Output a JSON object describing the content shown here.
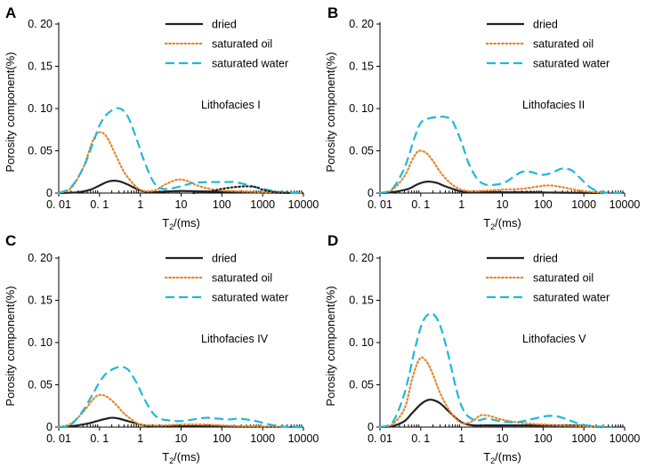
{
  "colors": {
    "dried": "#222222",
    "oil": "#E8852B",
    "water": "#1FB8D8",
    "dotted_dark": "#222222"
  },
  "shared": {
    "xlabel_main": "T",
    "xlabel_sub": "2",
    "xlabel_tail": "/(ms)",
    "ylabel": "Porosity component(%)",
    "legend": [
      "dried",
      "saturated oil",
      "saturated water"
    ],
    "xticks": [
      "0. 01",
      "0. 1",
      "1",
      "10",
      "100",
      "1000",
      "10000"
    ],
    "xtick_values": [
      0.01,
      0.1,
      1,
      10,
      100,
      1000,
      10000
    ]
  },
  "chart_data": [
    {
      "type": "line",
      "panel": "A",
      "label": "Lithofacies I",
      "xscale": "log",
      "xlim": [
        0.01,
        10000
      ],
      "ylim": [
        0,
        0.2
      ],
      "yticks": [
        "0",
        "0. 05",
        "0. 10",
        "0. 15",
        "0. 20"
      ],
      "ytick_values": [
        0,
        0.05,
        0.1,
        0.15,
        0.2
      ],
      "series": [
        {
          "name": "dried",
          "style": "solid",
          "color": "#222222",
          "x": [
            0.01,
            0.03,
            0.06,
            0.1,
            0.15,
            0.2,
            0.3,
            0.5,
            0.8,
            1.2,
            2,
            5,
            10,
            30,
            100,
            300,
            1000,
            3000,
            10000
          ],
          "values": [
            0,
            0.001,
            0.004,
            0.009,
            0.013,
            0.0145,
            0.014,
            0.01,
            0.005,
            0.002,
            0.001,
            0.002,
            0.0025,
            0.002,
            0.0015,
            0.001,
            0.0005,
            0.0002,
            0
          ]
        },
        {
          "name": "saturated oil",
          "style": "dotted",
          "color": "#E8852B",
          "x": [
            0.01,
            0.02,
            0.04,
            0.06,
            0.08,
            0.1,
            0.13,
            0.17,
            0.25,
            0.4,
            0.7,
            1,
            1.5,
            2.5,
            4,
            7,
            10,
            15,
            25,
            50,
            100,
            300,
            1000,
            3000,
            10000
          ],
          "values": [
            0,
            0.006,
            0.03,
            0.055,
            0.068,
            0.072,
            0.07,
            0.062,
            0.045,
            0.025,
            0.01,
            0.004,
            0.002,
            0.004,
            0.01,
            0.015,
            0.016,
            0.014,
            0.009,
            0.005,
            0.003,
            0.002,
            0.001,
            0.0003,
            0
          ]
        },
        {
          "name": "saturated water",
          "style": "dashed",
          "color": "#1FB8D8",
          "x": [
            0.01,
            0.02,
            0.04,
            0.07,
            0.1,
            0.15,
            0.25,
            0.35,
            0.5,
            0.8,
            1.2,
            2,
            3,
            5,
            10,
            20,
            50,
            100,
            200,
            400,
            1000,
            3000,
            10000
          ],
          "values": [
            0,
            0.007,
            0.03,
            0.06,
            0.08,
            0.093,
            0.1,
            0.099,
            0.09,
            0.065,
            0.04,
            0.015,
            0.006,
            0.005,
            0.008,
            0.012,
            0.013,
            0.013,
            0.013,
            0.01,
            0.005,
            0.001,
            0
          ]
        },
        {
          "name": "additional",
          "style": "dotted",
          "color": "#222222",
          "x": [
            20,
            50,
            100,
            200,
            400,
            700,
            1000,
            2000,
            5000
          ],
          "values": [
            0,
            0.002,
            0.005,
            0.007,
            0.008,
            0.007,
            0.004,
            0.001,
            0
          ]
        }
      ]
    },
    {
      "type": "line",
      "panel": "B",
      "label": "Lithofacies II",
      "xscale": "log",
      "xlim": [
        0.01,
        10000
      ],
      "ylim": [
        0,
        0.2
      ],
      "yticks": [
        "0",
        "0. 05",
        "0. 10",
        "0. 15",
        "0. 20"
      ],
      "ytick_values": [
        0,
        0.05,
        0.1,
        0.15,
        0.2
      ],
      "series": [
        {
          "name": "dried",
          "style": "solid",
          "color": "#222222",
          "x": [
            0.01,
            0.02,
            0.05,
            0.08,
            0.12,
            0.17,
            0.25,
            0.4,
            0.7,
            1,
            2,
            5,
            10,
            50,
            200,
            1000,
            3000
          ],
          "values": [
            0,
            0.001,
            0.005,
            0.01,
            0.013,
            0.0135,
            0.012,
            0.008,
            0.004,
            0.002,
            0.001,
            0.001,
            0.001,
            0.001,
            0.0005,
            0.0002,
            0
          ]
        },
        {
          "name": "saturated oil",
          "style": "dotted",
          "color": "#E8852B",
          "x": [
            0.01,
            0.02,
            0.04,
            0.06,
            0.08,
            0.1,
            0.14,
            0.2,
            0.3,
            0.5,
            0.8,
            1.2,
            2,
            4,
            10,
            30,
            80,
            150,
            300,
            600,
            1200,
            3000
          ],
          "values": [
            0,
            0.004,
            0.02,
            0.038,
            0.048,
            0.05,
            0.047,
            0.038,
            0.025,
            0.013,
            0.006,
            0.003,
            0.002,
            0.003,
            0.004,
            0.005,
            0.008,
            0.009,
            0.007,
            0.004,
            0.002,
            0
          ]
        },
        {
          "name": "saturated water",
          "style": "dashed",
          "color": "#1FB8D8",
          "x": [
            0.01,
            0.02,
            0.04,
            0.07,
            0.1,
            0.15,
            0.25,
            0.4,
            0.6,
            1,
            1.5,
            2.5,
            4,
            7,
            12,
            20,
            30,
            50,
            80,
            120,
            200,
            300,
            500,
            800,
            1500,
            3000,
            10000
          ],
          "values": [
            0,
            0.005,
            0.03,
            0.065,
            0.083,
            0.088,
            0.09,
            0.09,
            0.085,
            0.06,
            0.035,
            0.016,
            0.01,
            0.01,
            0.013,
            0.02,
            0.025,
            0.025,
            0.022,
            0.022,
            0.026,
            0.029,
            0.027,
            0.018,
            0.006,
            0.001,
            0
          ]
        }
      ]
    },
    {
      "type": "line",
      "panel": "C",
      "label": "Lithofacies IV",
      "xscale": "log",
      "xlim": [
        0.01,
        10000
      ],
      "ylim": [
        0,
        0.2
      ],
      "yticks": [
        "0",
        "0. 05",
        "0. 10",
        "0. 15",
        "0. 20"
      ],
      "ytick_values": [
        0,
        0.05,
        0.1,
        0.15,
        0.2
      ],
      "series": [
        {
          "name": "dried",
          "style": "solid",
          "color": "#222222",
          "x": [
            0.01,
            0.02,
            0.05,
            0.1,
            0.15,
            0.2,
            0.3,
            0.5,
            1,
            2,
            5,
            10,
            50,
            200,
            1000,
            3000
          ],
          "values": [
            0,
            0.001,
            0.004,
            0.008,
            0.01,
            0.011,
            0.01,
            0.007,
            0.003,
            0.001,
            0.001,
            0.001,
            0.001,
            0.0005,
            0.0002,
            0
          ]
        },
        {
          "name": "saturated oil",
          "style": "dotted",
          "color": "#E8852B",
          "x": [
            0.01,
            0.02,
            0.04,
            0.07,
            0.1,
            0.15,
            0.25,
            0.4,
            0.7,
            1,
            2,
            4,
            10,
            30,
            100,
            300,
            1000,
            3000
          ],
          "values": [
            0,
            0.004,
            0.018,
            0.033,
            0.038,
            0.036,
            0.027,
            0.016,
            0.007,
            0.003,
            0.002,
            0.002,
            0.003,
            0.003,
            0.002,
            0.001,
            0.0005,
            0
          ]
        },
        {
          "name": "saturated water",
          "style": "dashed",
          "color": "#1FB8D8",
          "x": [
            0.01,
            0.02,
            0.04,
            0.07,
            0.1,
            0.15,
            0.25,
            0.35,
            0.5,
            0.8,
            1.2,
            2,
            3,
            5,
            10,
            20,
            40,
            80,
            150,
            250,
            400,
            700,
            1200,
            2500,
            5000,
            10000
          ],
          "values": [
            0,
            0.003,
            0.02,
            0.04,
            0.053,
            0.064,
            0.07,
            0.071,
            0.068,
            0.053,
            0.035,
            0.017,
            0.01,
            0.008,
            0.007,
            0.009,
            0.011,
            0.01,
            0.009,
            0.01,
            0.009,
            0.007,
            0.004,
            0.001,
            0,
            0
          ]
        }
      ]
    },
    {
      "type": "line",
      "panel": "D",
      "label": "Lithofacies V",
      "xscale": "log",
      "xlim": [
        0.01,
        10000
      ],
      "ylim": [
        0,
        0.2
      ],
      "yticks": [
        "0",
        "0. 05",
        "0. 10",
        "0. 15",
        "0. 20"
      ],
      "ytick_values": [
        0,
        0.05,
        0.1,
        0.15,
        0.2
      ],
      "series": [
        {
          "name": "dried",
          "style": "solid",
          "color": "#222222",
          "x": [
            0.01,
            0.02,
            0.04,
            0.06,
            0.1,
            0.15,
            0.2,
            0.3,
            0.5,
            0.8,
            1.2,
            2,
            4,
            10,
            50,
            200,
            500,
            1000,
            3000
          ],
          "values": [
            0,
            0.001,
            0.007,
            0.016,
            0.027,
            0.032,
            0.032,
            0.028,
            0.018,
            0.009,
            0.004,
            0.002,
            0.002,
            0.002,
            0.002,
            0.002,
            0.002,
            0.001,
            0
          ]
        },
        {
          "name": "saturated oil",
          "style": "dotted",
          "color": "#E8852B",
          "x": [
            0.01,
            0.02,
            0.04,
            0.06,
            0.08,
            0.1,
            0.12,
            0.15,
            0.2,
            0.3,
            0.5,
            0.8,
            1.2,
            2,
            3,
            5,
            8,
            12,
            20,
            50,
            100,
            300,
            1000,
            3000
          ],
          "values": [
            0,
            0.003,
            0.022,
            0.055,
            0.074,
            0.082,
            0.081,
            0.075,
            0.062,
            0.04,
            0.02,
            0.008,
            0.004,
            0.008,
            0.014,
            0.013,
            0.01,
            0.008,
            0.006,
            0.004,
            0.003,
            0.002,
            0.001,
            0
          ]
        },
        {
          "name": "saturated water",
          "style": "dashed",
          "color": "#1FB8D8",
          "x": [
            0.01,
            0.02,
            0.04,
            0.07,
            0.1,
            0.13,
            0.17,
            0.22,
            0.3,
            0.45,
            0.7,
            1,
            1.5,
            2.5,
            4,
            7,
            12,
            25,
            60,
            120,
            200,
            300,
            500,
            900,
            2000,
            5000
          ],
          "values": [
            0,
            0.005,
            0.04,
            0.09,
            0.118,
            0.13,
            0.134,
            0.132,
            0.12,
            0.09,
            0.05,
            0.025,
            0.012,
            0.008,
            0.01,
            0.008,
            0.006,
            0.006,
            0.01,
            0.013,
            0.013,
            0.011,
            0.007,
            0.003,
            0.001,
            0
          ]
        }
      ]
    }
  ]
}
